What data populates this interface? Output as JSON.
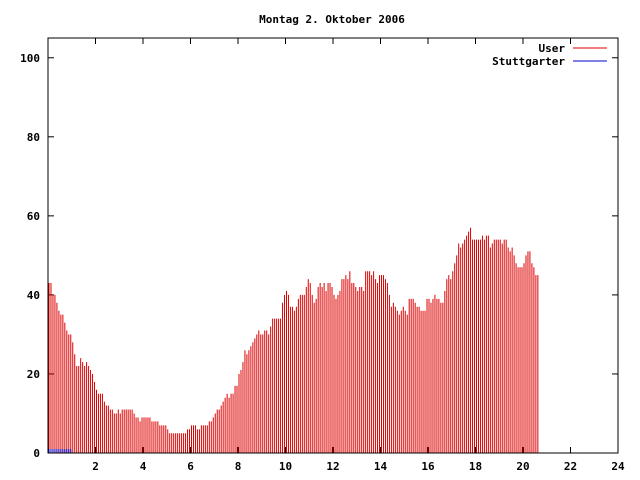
{
  "chart_data": {
    "type": "bar",
    "title": "Montag 2. Oktober 2006",
    "xlabel": "",
    "ylabel": "",
    "xlim": [
      0,
      24
    ],
    "ylim": [
      0,
      105
    ],
    "x_ticks": [
      2,
      4,
      6,
      8,
      10,
      12,
      14,
      16,
      18,
      20,
      22,
      24
    ],
    "y_ticks": [
      0,
      20,
      40,
      60,
      80,
      100
    ],
    "grid": false,
    "legend_position": "top-right",
    "interval_minutes": 5,
    "series": [
      {
        "name": "User",
        "color": "#dd0000",
        "values": [
          43,
          43,
          40,
          40,
          38,
          36,
          35,
          35,
          33,
          31,
          30,
          30,
          28,
          25,
          22,
          22,
          24,
          23,
          22,
          23,
          22,
          21,
          20,
          18,
          16,
          15,
          15,
          15,
          13,
          12,
          12,
          11,
          11,
          10,
          10,
          11,
          10,
          11,
          11,
          11,
          11,
          11,
          11,
          10,
          9,
          9,
          8,
          9,
          9,
          9,
          9,
          9,
          8,
          8,
          8,
          8,
          7,
          7,
          7,
          7,
          6,
          5,
          5,
          5,
          5,
          5,
          5,
          5,
          5,
          5,
          6,
          6,
          7,
          7,
          7,
          6,
          6,
          7,
          7,
          7,
          7,
          8,
          8,
          9,
          10,
          11,
          11,
          12,
          13,
          14,
          15,
          14,
          15,
          15,
          17,
          17,
          20,
          21,
          23,
          26,
          25,
          26,
          27,
          28,
          29,
          30,
          31,
          30,
          30,
          31,
          31,
          30,
          32,
          34,
          34,
          34,
          34,
          34,
          38,
          40,
          41,
          40,
          37,
          37,
          36,
          37,
          39,
          40,
          40,
          40,
          42,
          44,
          43,
          40,
          38,
          39,
          42,
          43,
          42,
          43,
          41,
          43,
          43,
          42,
          40,
          39,
          40,
          41,
          44,
          44,
          45,
          44,
          46,
          43,
          43,
          42,
          41,
          42,
          42,
          41,
          46,
          46,
          46,
          45,
          46,
          44,
          43,
          45,
          45,
          45,
          44,
          43,
          40,
          37,
          38,
          37,
          36,
          35,
          36,
          37,
          36,
          35,
          39,
          39,
          39,
          38,
          37,
          37,
          36,
          36,
          36,
          39,
          39,
          38,
          39,
          40,
          39,
          39,
          38,
          38,
          41,
          44,
          45,
          44,
          46,
          48,
          50,
          53,
          52,
          53,
          54,
          55,
          56,
          57,
          54,
          54,
          54,
          54,
          54,
          55,
          54,
          55,
          55,
          52,
          53,
          54,
          54,
          54,
          54,
          53,
          54,
          54,
          52,
          51,
          52,
          50,
          48,
          47,
          47,
          47,
          48,
          50,
          51,
          51,
          48,
          47,
          45,
          45
        ]
      },
      {
        "name": "Stuttgarter",
        "color": "#0000cc",
        "values": [
          1,
          1,
          1,
          1,
          1,
          1,
          1,
          1,
          1,
          1,
          1,
          1,
          0,
          0,
          0,
          0,
          0,
          0,
          0,
          0,
          0,
          0,
          0,
          0,
          0,
          0,
          0,
          0,
          0,
          0,
          0,
          0,
          0,
          0,
          0,
          0,
          0,
          0,
          0,
          0,
          0,
          0,
          0,
          0,
          0,
          0,
          0,
          0,
          0,
          0,
          0,
          0,
          0,
          0,
          0,
          0,
          0,
          0,
          0,
          0,
          0,
          0,
          0,
          0,
          0,
          0,
          0,
          0,
          0,
          0,
          0,
          0,
          0,
          0,
          0,
          0,
          0,
          0,
          0,
          0,
          0,
          0,
          0,
          0,
          0,
          0,
          0,
          0,
          0,
          0,
          0,
          0,
          0,
          0,
          0,
          0,
          0,
          0,
          0,
          0,
          0,
          0,
          0,
          0,
          0,
          0,
          0,
          0,
          0,
          0,
          0,
          0,
          0,
          0,
          0,
          0,
          0,
          0,
          0,
          0,
          0,
          0,
          0,
          0,
          0,
          0,
          0,
          0,
          0,
          0,
          0,
          0,
          0,
          0,
          0,
          0,
          0,
          0,
          0,
          0,
          0,
          0,
          0,
          0,
          0,
          0,
          0,
          0,
          0,
          0,
          0,
          0,
          0,
          0,
          0,
          0,
          0,
          0,
          0,
          0,
          0,
          0,
          0,
          0,
          0,
          0,
          0,
          0,
          0,
          0,
          0,
          0,
          0,
          0,
          0,
          0,
          0,
          0,
          0,
          0,
          0,
          0,
          0,
          0,
          0,
          0,
          0,
          0,
          0,
          0,
          0,
          0,
          0,
          0,
          0,
          0,
          0,
          0,
          0,
          0,
          0,
          0,
          0,
          0,
          0,
          0,
          0,
          0,
          0,
          0,
          0,
          0,
          0,
          0,
          0,
          0,
          0,
          0,
          0,
          0,
          0,
          0,
          0,
          0,
          0,
          0,
          0,
          0,
          0,
          0,
          0,
          0,
          0,
          0,
          0,
          0,
          0,
          0,
          0,
          0,
          0,
          0,
          0,
          0,
          0,
          0,
          0,
          0,
          0,
          0,
          0,
          0,
          0,
          0,
          0,
          0,
          0,
          0,
          0,
          0,
          0,
          0,
          0,
          0,
          0,
          0,
          0,
          0,
          0,
          0,
          0,
          0,
          0,
          0,
          0,
          0,
          0,
          0
        ]
      }
    ]
  }
}
